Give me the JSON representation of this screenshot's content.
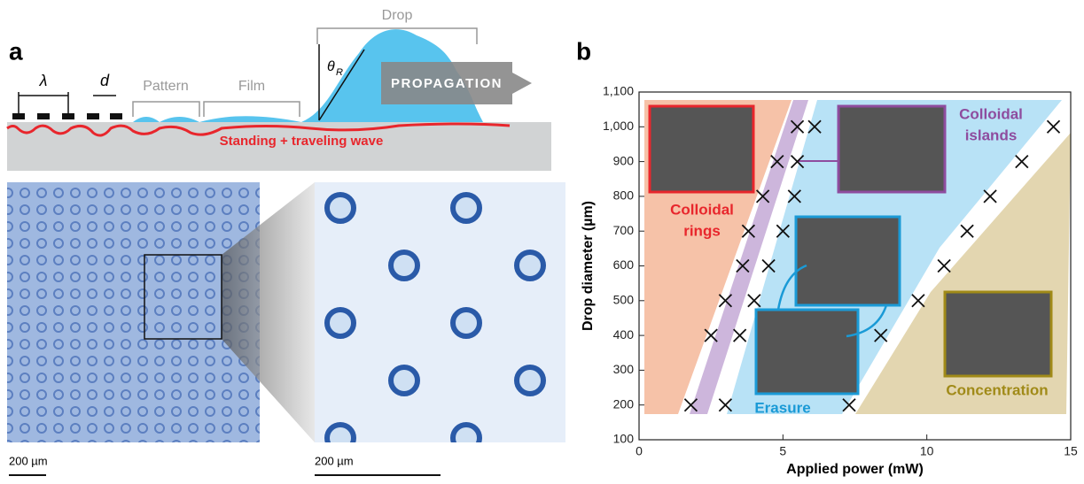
{
  "panel_a": {
    "label": "a",
    "lambda": "λ",
    "d": "d",
    "pattern": "Pattern",
    "film": "Film",
    "drop": "Drop",
    "theta": "θ",
    "theta_sub": "R",
    "propagation": "PROPAGATION",
    "wave": "Standing + traveling wave",
    "scale_left": "200 µm",
    "scale_right": "200 µm"
  },
  "panel_b_label": "b",
  "chart_data": {
    "type": "scatter",
    "xlabel": "Applied power (mW)",
    "ylabel": "Drop diameter (µm)",
    "x": [
      1.8,
      3.0,
      2.5,
      3.5,
      3.0,
      4.0,
      3.6,
      4.5,
      3.8,
      5.0,
      4.3,
      5.4,
      4.8,
      5.5,
      5.5,
      6.1,
      7.3,
      8.4,
      9.7,
      10.6,
      11.4,
      12.2,
      13.3,
      14.4
    ],
    "values": [
      200,
      200,
      400,
      400,
      500,
      500,
      600,
      600,
      700,
      700,
      800,
      800,
      900,
      900,
      1000,
      1000,
      200,
      400,
      500,
      600,
      700,
      800,
      900,
      1000
    ],
    "marker_color": "#111111",
    "xlim": [
      0,
      15
    ],
    "ylim": [
      100,
      1100
    ],
    "xticks": [
      0,
      5,
      10,
      15
    ],
    "yticks": [
      100,
      200,
      300,
      400,
      500,
      600,
      700,
      800,
      900,
      {
        "value": 1000,
        "label": "1,000"
      },
      {
        "value": 1100,
        "label": "1,100"
      }
    ],
    "annotations": [
      {
        "lines": [
          "Colloidal",
          "rings"
        ],
        "color": "#e8262c"
      },
      {
        "lines": [
          "Colloidal",
          "islands"
        ],
        "color": "#8e4c9e"
      },
      {
        "lines": [
          "Erasure"
        ],
        "color": "#1a9ad6"
      },
      {
        "lines": [
          "Concentration"
        ],
        "color": "#a08a18"
      }
    ]
  }
}
